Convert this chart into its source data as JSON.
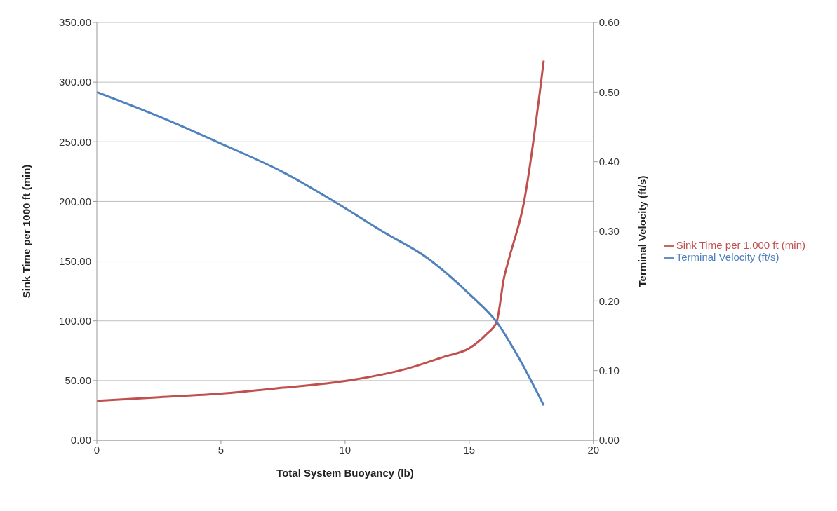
{
  "chart_data": {
    "type": "line",
    "xlabel": "Total System Buoyancy (lb)",
    "ylabel": "Sink Time per 1000 ft (min)",
    "y2label": "Terminal Velocity (ft/s)",
    "xlim": [
      0,
      20
    ],
    "xticks": [
      0,
      5,
      10,
      15,
      20
    ],
    "ylim": [
      0,
      350
    ],
    "yticks": [
      {
        "value": 0,
        "label": "0.00"
      },
      {
        "value": 50,
        "label": "50.00"
      },
      {
        "value": 100,
        "label": "100.00"
      },
      {
        "value": 150,
        "label": "150.00"
      },
      {
        "value": 200,
        "label": "200.00"
      },
      {
        "value": 250,
        "label": "250.00"
      },
      {
        "value": 300,
        "label": "300.00"
      },
      {
        "value": 350,
        "label": "350.00"
      }
    ],
    "y2lim": [
      0,
      0.6
    ],
    "y2ticks": [
      {
        "value": 0,
        "label": "0.00"
      },
      {
        "value": 0.1,
        "label": "0.10"
      },
      {
        "value": 0.2,
        "label": "0.20"
      },
      {
        "value": 0.3,
        "label": "0.30"
      },
      {
        "value": 0.4,
        "label": "0.40"
      },
      {
        "value": 0.5,
        "label": "0.50"
      },
      {
        "value": 0.6,
        "label": "0.60"
      }
    ],
    "grid": "y",
    "legend": "right",
    "marker": "none",
    "line_style": "solid",
    "series": [
      {
        "name": "Sink Time per 1,000 ft (min)",
        "color": "#c0504d",
        "x": [
          0,
          2.5,
          5,
          7.5,
          10,
          12.5,
          14,
          15,
          15.7,
          16.1,
          16.4,
          16.6,
          17.2,
          18
        ],
        "values": [
          33,
          36,
          39,
          44,
          49.6,
          60,
          70,
          77,
          89,
          99,
          136,
          152,
          199,
          318
        ]
      },
      {
        "name": "Terminal Velocity (ft/s)",
        "color": "#4f81bd",
        "axis": "y2",
        "x": [
          0,
          2.5,
          5,
          7.5,
          9.6,
          11.5,
          13.3,
          15,
          16.1,
          17,
          18
        ],
        "values": [
          0.5,
          0.465,
          0.426,
          0.385,
          0.342,
          0.3,
          0.262,
          0.21,
          0.17,
          0.118,
          0.05
        ]
      }
    ]
  }
}
